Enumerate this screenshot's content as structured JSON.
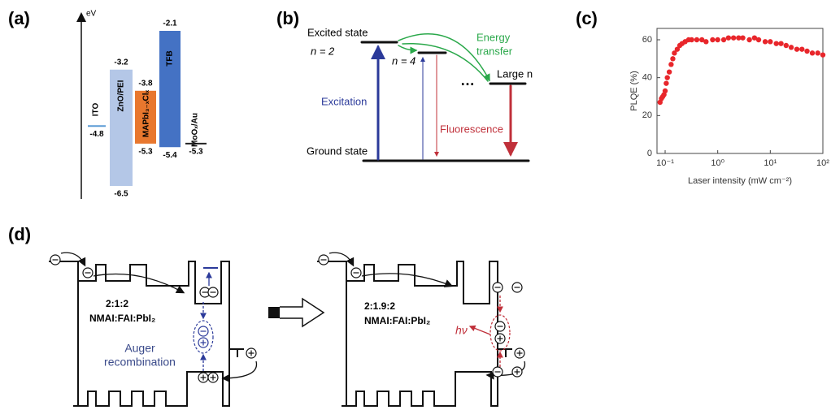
{
  "panel_labels": [
    "(a)",
    "(b)",
    "(c)",
    "(d)"
  ],
  "panel_a": {
    "axis_label": "eV",
    "materials": [
      {
        "name": "ITO",
        "levels": [
          -4.8
        ],
        "color": "#5b9bd5"
      },
      {
        "name": "ZnO/PEI",
        "levels": [
          -3.2,
          -6.5
        ],
        "color": "#b4c7e7"
      },
      {
        "name": "MAPbI₃₋ₓClₓ",
        "levels": [
          -3.8,
          -5.3
        ],
        "color": "#e8772e"
      },
      {
        "name": "TFB",
        "levels": [
          -2.1,
          -5.4
        ],
        "color": "#4472c4"
      },
      {
        "name": "MoOₓ/Au",
        "levels": [
          -5.3
        ],
        "color": "#222222"
      }
    ]
  },
  "panel_b": {
    "excited_state": "Excited state",
    "n2": "n = 2",
    "n4": "n = 4",
    "dots": "…",
    "large_n": "Large n",
    "energy_transfer": [
      "Energy",
      "transfer"
    ],
    "excitation": "Excitation",
    "fluorescence": "Fluorescence",
    "ground_state": "Ground state"
  },
  "chart_data": {
    "type": "scatter",
    "xlabel": "Laser intensity (mW cm⁻²)",
    "ylabel": "PLQE (%)",
    "color": "#e8262b",
    "log_x": true,
    "x": [
      0.08,
      0.085,
      0.09,
      0.095,
      0.1,
      0.105,
      0.11,
      0.12,
      0.13,
      0.14,
      0.15,
      0.17,
      0.19,
      0.21,
      0.24,
      0.28,
      0.32,
      0.4,
      0.5,
      0.6,
      0.8,
      1.0,
      1.3,
      1.6,
      2,
      2.5,
      3,
      4,
      5,
      6,
      8,
      10,
      13,
      16,
      20,
      25,
      32,
      40,
      50,
      63,
      80,
      100
    ],
    "values": [
      27,
      29,
      30,
      31,
      33,
      37,
      40,
      43,
      47,
      50,
      53,
      55,
      57,
      58,
      59,
      60,
      60,
      60,
      60,
      59,
      60,
      60,
      60,
      61,
      61,
      61,
      61,
      60,
      61,
      60,
      59,
      59,
      58,
      58,
      57,
      56,
      55,
      55,
      54,
      53,
      53,
      52
    ],
    "xlim": [
      0.07,
      100
    ],
    "ylim": [
      0,
      66
    ],
    "xticks": [
      {
        "value": 0.1,
        "label": "10⁻¹"
      },
      {
        "value": 1,
        "label": "10⁰"
      },
      {
        "value": 10,
        "label": "10¹"
      },
      {
        "value": 100,
        "label": "10²"
      }
    ],
    "yticks": [
      0,
      20,
      40,
      60
    ]
  },
  "panel_d": {
    "left": {
      "ratio": "2:1:2",
      "composition": "NMAI:FAI:PbI₂",
      "process": [
        "Auger",
        "recombination"
      ]
    },
    "right": {
      "ratio": "2:1.9:2",
      "composition": "NMAI:FAI:PbI₂",
      "photon": "hν"
    }
  }
}
